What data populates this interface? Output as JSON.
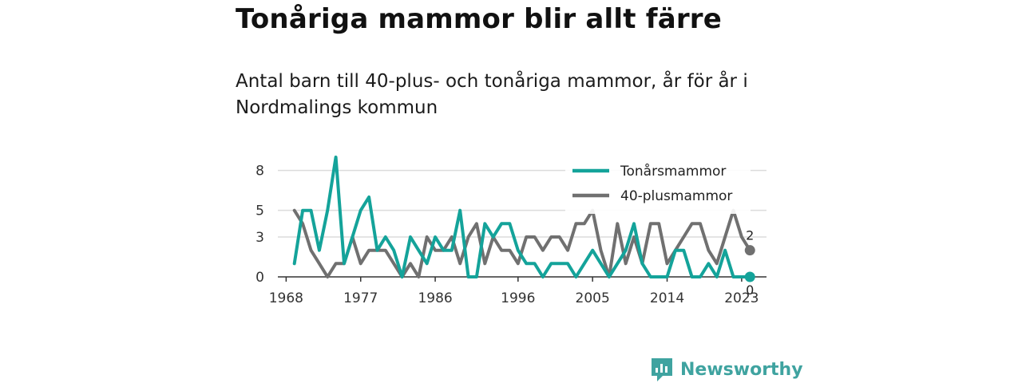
{
  "header": {
    "title": "Tonåriga mammor blir allt färre",
    "subtitle": "Antal barn till 40-plus- och tonåriga mammor, år för år i Nordmalings kommun"
  },
  "brand": {
    "name": "Newsworthy",
    "icon": "newsworthy-logo-icon",
    "color": "#3fa3a0"
  },
  "chart_data": {
    "type": "line",
    "x_ticks": [
      1968,
      1977,
      1986,
      1996,
      2005,
      2014,
      2023
    ],
    "y_ticks": [
      0,
      3,
      5,
      8
    ],
    "ylim": [
      0,
      9
    ],
    "xlim": [
      1967,
      2026
    ],
    "grid": true,
    "legend_position": "top-right",
    "end_labels": [
      "2",
      "0"
    ],
    "x": [
      1969,
      1970,
      1971,
      1972,
      1973,
      1974,
      1975,
      1976,
      1977,
      1978,
      1979,
      1980,
      1981,
      1982,
      1983,
      1984,
      1985,
      1986,
      1987,
      1988,
      1989,
      1990,
      1991,
      1992,
      1993,
      1994,
      1995,
      1996,
      1997,
      1998,
      1999,
      2000,
      2001,
      2002,
      2003,
      2004,
      2005,
      2006,
      2007,
      2008,
      2009,
      2010,
      2011,
      2012,
      2013,
      2014,
      2015,
      2016,
      2017,
      2018,
      2019,
      2020,
      2021,
      2022,
      2023,
      2024
    ],
    "series": [
      {
        "name": "Tonårsmammor",
        "color": "#14a39a",
        "values": [
          1,
          5,
          5,
          2,
          5,
          9,
          1,
          3,
          5,
          6,
          2,
          3,
          2,
          0,
          3,
          2,
          1,
          3,
          2,
          2,
          5,
          0,
          0,
          4,
          3,
          4,
          4,
          2,
          1,
          1,
          0,
          1,
          1,
          1,
          0,
          1,
          2,
          1,
          0,
          1,
          2,
          4,
          1,
          0,
          0,
          0,
          2,
          2,
          0,
          0,
          1,
          0,
          2,
          0,
          0,
          0
        ]
      },
      {
        "name": "40-plusmammor",
        "color": "#707070",
        "values": [
          5,
          4,
          2,
          1,
          0,
          1,
          1,
          3,
          1,
          2,
          2,
          2,
          1,
          0,
          1,
          0,
          3,
          2,
          2,
          3,
          1,
          3,
          4,
          1,
          3,
          2,
          2,
          1,
          3,
          3,
          2,
          3,
          3,
          2,
          4,
          4,
          5,
          2,
          0,
          4,
          1,
          3,
          1,
          4,
          4,
          1,
          2,
          3,
          4,
          4,
          2,
          1,
          3,
          5,
          3,
          2
        ]
      }
    ]
  }
}
